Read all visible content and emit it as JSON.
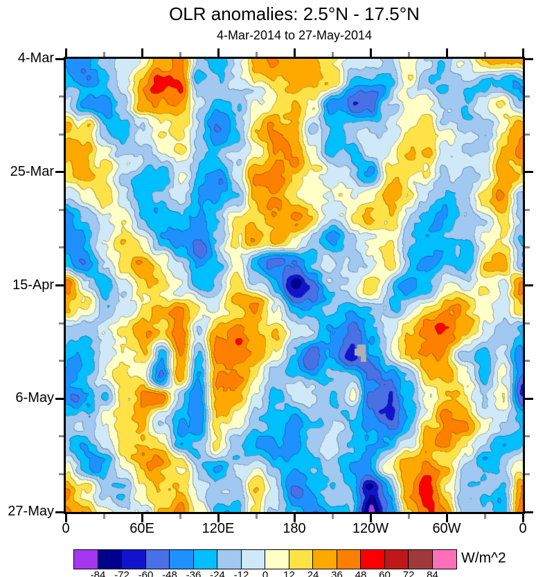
{
  "title": "OLR anomalies: 2.5°N - 17.5°N",
  "subtitle": "4-Mar-2014 to 27-May-2014",
  "y_axis": {
    "major_ticks": [
      {
        "day": 0,
        "label": "4-Mar"
      },
      {
        "day": 21,
        "label": "25-Mar"
      },
      {
        "day": 42,
        "label": "15-Apr"
      },
      {
        "day": 63,
        "label": "6-May"
      },
      {
        "day": 84,
        "label": "27-May"
      }
    ],
    "minor_interval_days": 7,
    "total_days": 84
  },
  "x_axis": {
    "major_ticks": [
      {
        "deg": 0,
        "label": "0"
      },
      {
        "deg": 60,
        "label": "60E"
      },
      {
        "deg": 120,
        "label": "120E"
      },
      {
        "deg": 180,
        "label": "180"
      },
      {
        "deg": 240,
        "label": "120W"
      },
      {
        "deg": 300,
        "label": "60W"
      },
      {
        "deg": 360,
        "label": "0"
      }
    ],
    "minor_interval_deg": 30,
    "total_deg": 360
  },
  "colorbar": {
    "units": "W/m^2",
    "boundary_labels": [
      "-84",
      "-72",
      "-60",
      "-48",
      "-36",
      "-24",
      "-12",
      "0",
      "12",
      "24",
      "36",
      "48",
      "60",
      "72",
      "84"
    ],
    "colors": [
      "#A438F0",
      "#00008F",
      "#1114CC",
      "#4A70E6",
      "#1E90FF",
      "#00BFFF",
      "#A0C8F0",
      "#CFE9F8",
      "#FFFFC8",
      "#FFE246",
      "#FFA800",
      "#FF7F00",
      "#FA0000",
      "#C01818",
      "#A03A3A",
      "#FF70B8"
    ]
  },
  "chart_data": {
    "type": "heatmap",
    "title": "OLR anomalies: 2.5°N - 17.5°N",
    "subtitle": "4-Mar-2014 to 27-May-2014",
    "units": "W/m^2",
    "x_unit": "longitude_deg_east_0_to_360",
    "y_unit": "days_since_4-Mar-2014",
    "x_range": [
      0,
      360
    ],
    "y_range": [
      0,
      84
    ],
    "lon_step_deg": 15,
    "time_step_days": 4.2,
    "levels": [
      -84,
      -72,
      -60,
      -48,
      -36,
      -24,
      -12,
      0,
      12,
      24,
      36,
      48,
      60,
      72,
      84
    ],
    "palette": [
      "#A438F0",
      "#00008F",
      "#1114CC",
      "#4A70E6",
      "#1E90FF",
      "#00BFFF",
      "#A0C8F0",
      "#CFE9F8",
      "#FFFFC8",
      "#FFE246",
      "#FFA800",
      "#FF7F00",
      "#FA0000",
      "#C01818",
      "#A03A3A",
      "#FF70B8"
    ],
    "grid": [
      [
        -25,
        -35,
        -20,
        0,
        15,
        40,
        45,
        -10,
        -25,
        0,
        15,
        35,
        40,
        35,
        25,
        -5,
        0,
        -20,
        10,
        -20,
        -30,
        -15,
        20,
        10,
        20
      ],
      [
        -30,
        -45,
        -30,
        -10,
        20,
        45,
        40,
        -30,
        -20,
        -10,
        10,
        25,
        35,
        30,
        15,
        -20,
        -25,
        -30,
        5,
        -15,
        -25,
        -20,
        -30,
        -30,
        -25
      ],
      [
        -20,
        -50,
        -55,
        -25,
        15,
        30,
        25,
        -15,
        -30,
        -20,
        10,
        20,
        20,
        10,
        -50,
        -50,
        -45,
        -10,
        10,
        15,
        -15,
        -25,
        5,
        20,
        -15
      ],
      [
        25,
        15,
        -30,
        -35,
        -10,
        20,
        25,
        -10,
        -30,
        -15,
        15,
        30,
        25,
        -15,
        -30,
        -20,
        -15,
        5,
        20,
        25,
        5,
        -15,
        -20,
        15,
        25
      ],
      [
        35,
        30,
        0,
        -25,
        -15,
        10,
        20,
        -15,
        -35,
        -25,
        5,
        30,
        30,
        0,
        -35,
        -20,
        0,
        15,
        30,
        15,
        -10,
        -20,
        -15,
        25,
        35
      ],
      [
        20,
        35,
        20,
        -10,
        -25,
        -10,
        10,
        -25,
        -40,
        -10,
        30,
        40,
        25,
        10,
        -15,
        -5,
        -25,
        25,
        20,
        5,
        -15,
        -25,
        -10,
        30,
        20
      ],
      [
        -10,
        15,
        30,
        5,
        -20,
        -15,
        5,
        -30,
        -35,
        -15,
        20,
        40,
        30,
        15,
        -10,
        5,
        20,
        30,
        10,
        -15,
        -25,
        -10,
        15,
        30,
        -10
      ],
      [
        -30,
        -15,
        15,
        25,
        -10,
        -25,
        -20,
        -35,
        -25,
        0,
        25,
        40,
        30,
        20,
        5,
        15,
        25,
        20,
        -5,
        -25,
        -30,
        -20,
        -15,
        10,
        -30
      ],
      [
        -35,
        -30,
        -5,
        25,
        15,
        -15,
        -30,
        -40,
        -20,
        10,
        30,
        30,
        15,
        -25,
        -40,
        -15,
        10,
        15,
        -15,
        -30,
        -20,
        -25,
        -10,
        0,
        -35
      ],
      [
        -25,
        -40,
        -20,
        10,
        30,
        20,
        -5,
        -30,
        -30,
        -10,
        -35,
        -55,
        -45,
        -30,
        -20,
        -15,
        0,
        10,
        -25,
        -35,
        -15,
        -20,
        10,
        15,
        -25
      ],
      [
        40,
        -10,
        -35,
        -15,
        20,
        30,
        10,
        -15,
        -25,
        0,
        -20,
        -45,
        -65,
        -45,
        -20,
        -10,
        5,
        -15,
        -35,
        -20,
        5,
        -15,
        10,
        -10,
        40
      ],
      [
        25,
        5,
        -30,
        -20,
        5,
        30,
        35,
        15,
        0,
        20,
        30,
        -10,
        -45,
        -35,
        -25,
        -35,
        -20,
        -25,
        -10,
        10,
        25,
        20,
        -10,
        -20,
        25
      ],
      [
        -20,
        -30,
        -10,
        5,
        30,
        25,
        35,
        -15,
        40,
        40,
        30,
        25,
        -15,
        -25,
        -40,
        -50,
        -30,
        -10,
        15,
        25,
        35,
        15,
        -15,
        -25,
        -20
      ],
      [
        -35,
        -45,
        -20,
        15,
        30,
        -30,
        40,
        -20,
        45,
        45,
        35,
        15,
        -25,
        -45,
        -30,
        -55,
        -30,
        5,
        25,
        35,
        25,
        -5,
        -25,
        -10,
        -35
      ],
      [
        -45,
        -30,
        -5,
        25,
        20,
        -55,
        35,
        -25,
        40,
        40,
        25,
        -10,
        -30,
        -35,
        -20,
        -25,
        -50,
        -40,
        -10,
        25,
        35,
        10,
        -20,
        5,
        -45
      ],
      [
        -55,
        -45,
        -20,
        10,
        40,
        30,
        -30,
        -30,
        35,
        30,
        10,
        -20,
        -25,
        -20,
        -30,
        -15,
        -55,
        -60,
        -25,
        10,
        30,
        25,
        -10,
        15,
        -55
      ],
      [
        -35,
        -25,
        -10,
        20,
        35,
        -15,
        -30,
        -40,
        30,
        20,
        -15,
        -30,
        -35,
        -25,
        -15,
        -20,
        -35,
        -50,
        -25,
        20,
        40,
        30,
        0,
        -20,
        -35
      ],
      [
        -20,
        -30,
        0,
        25,
        30,
        15,
        -35,
        -30,
        15,
        -20,
        -35,
        -30,
        -40,
        -15,
        0,
        -15,
        -25,
        -30,
        -5,
        35,
        45,
        20,
        -15,
        -25,
        -20
      ],
      [
        10,
        -15,
        -25,
        5,
        30,
        35,
        15,
        -25,
        -30,
        -15,
        5,
        -25,
        -30,
        -25,
        -15,
        -30,
        -15,
        5,
        30,
        40,
        30,
        -10,
        -25,
        -5,
        10
      ],
      [
        30,
        20,
        -10,
        -25,
        10,
        35,
        30,
        -5,
        -25,
        -30,
        10,
        -15,
        -50,
        -35,
        -25,
        -15,
        -60,
        -25,
        30,
        45,
        15,
        -15,
        -15,
        -30,
        30
      ],
      [
        35,
        30,
        5,
        -20,
        -15,
        30,
        40,
        20,
        -30,
        -35,
        15,
        -10,
        -30,
        -55,
        -30,
        -15,
        -80,
        -40,
        25,
        45,
        30,
        -10,
        -20,
        -40,
        35
      ]
    ],
    "missing_patch": {
      "x_deg": 232,
      "day_start": 53,
      "day_end": 56,
      "color": "#B0B0B0"
    }
  }
}
